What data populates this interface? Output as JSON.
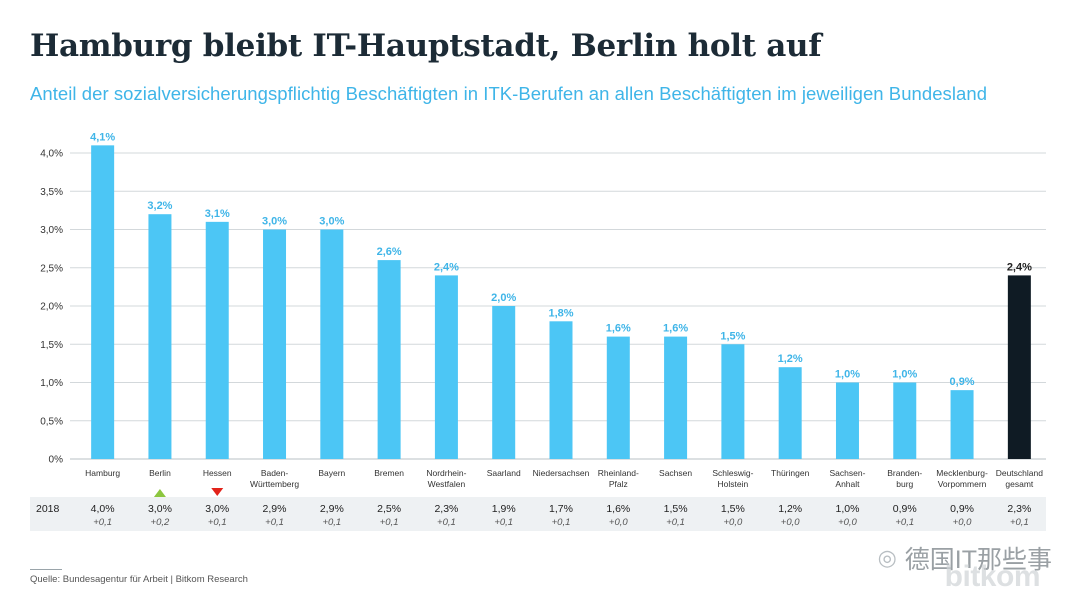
{
  "title": "Hamburg bleibt IT-Hauptstadt, Berlin holt auf",
  "subtitle": "Anteil der sozialversicherungspflichtig Beschäftigten in ITK-Berufen an allen Beschäftigten im jeweiligen Bundesland",
  "source": "Quelle: Bundesagentur für Arbeit | Bitkom Research",
  "watermark": "德国IT那些事",
  "watermark_icon": "wechat-icon",
  "brand": "bitkom",
  "colors": {
    "bar": "#4cc6f5",
    "total_bar": "#0f1b24",
    "label": "#3fb5e8",
    "up": "#8cc63f",
    "down": "#e2231a"
  },
  "chart_data": {
    "type": "bar",
    "ylim": [
      0,
      4.0
    ],
    "yticks": [
      "0%",
      "0,5%",
      "1,0%",
      "1,5%",
      "2,0%",
      "2,5%",
      "3,0%",
      "3,5%",
      "4,0%"
    ],
    "grid": true,
    "categories": [
      [
        "Hamburg"
      ],
      [
        "Berlin"
      ],
      [
        "Hessen"
      ],
      [
        "Baden-",
        "Württemberg"
      ],
      [
        "Bayern"
      ],
      [
        "Bremen"
      ],
      [
        "Nordrhein-",
        "Westfalen"
      ],
      [
        "Saarland"
      ],
      [
        "Niedersachsen"
      ],
      [
        "Rheinland-",
        "Pfalz"
      ],
      [
        "Sachsen"
      ],
      [
        "Schleswig-",
        "Holstein"
      ],
      [
        "Thüringen"
      ],
      [
        "Sachsen-",
        "Anhalt"
      ],
      [
        "Branden-",
        "burg"
      ],
      [
        "Mecklenburg-",
        "Vorpommern"
      ],
      [
        "Deutschland",
        "gesamt"
      ]
    ],
    "values": [
      4.1,
      3.2,
      3.1,
      3.0,
      3.0,
      2.6,
      2.4,
      2.0,
      1.8,
      1.6,
      1.6,
      1.5,
      1.2,
      1.0,
      1.0,
      0.9,
      2.4
    ],
    "value_labels": [
      "4,1%",
      "3,2%",
      "3,1%",
      "3,0%",
      "3,0%",
      "2,6%",
      "2,4%",
      "2,0%",
      "1,8%",
      "1,6%",
      "1,6%",
      "1,5%",
      "1,2%",
      "1,0%",
      "1,0%",
      "0,9%",
      "2,4%"
    ],
    "highlight_index": 16,
    "markers": [
      null,
      "up",
      "down",
      null,
      null,
      null,
      null,
      null,
      null,
      null,
      null,
      null,
      null,
      null,
      null,
      null,
      null
    ],
    "comparison_row": {
      "label": "2018",
      "values": [
        "4,0%",
        "3,0%",
        "3,0%",
        "2,9%",
        "2,9%",
        "2,5%",
        "2,3%",
        "1,9%",
        "1,7%",
        "1,6%",
        "1,5%",
        "1,5%",
        "1,2%",
        "1,0%",
        "0,9%",
        "0,9%",
        "2,3%"
      ],
      "changes": [
        "+0,1",
        "+0,2",
        "+0,1",
        "+0,1",
        "+0,1",
        "+0,1",
        "+0,1",
        "+0,1",
        "+0,1",
        "+0,0",
        "+0,1",
        "+0,0",
        "+0,0",
        "+0,0",
        "+0,1",
        "+0,0",
        "+0,1"
      ]
    }
  }
}
